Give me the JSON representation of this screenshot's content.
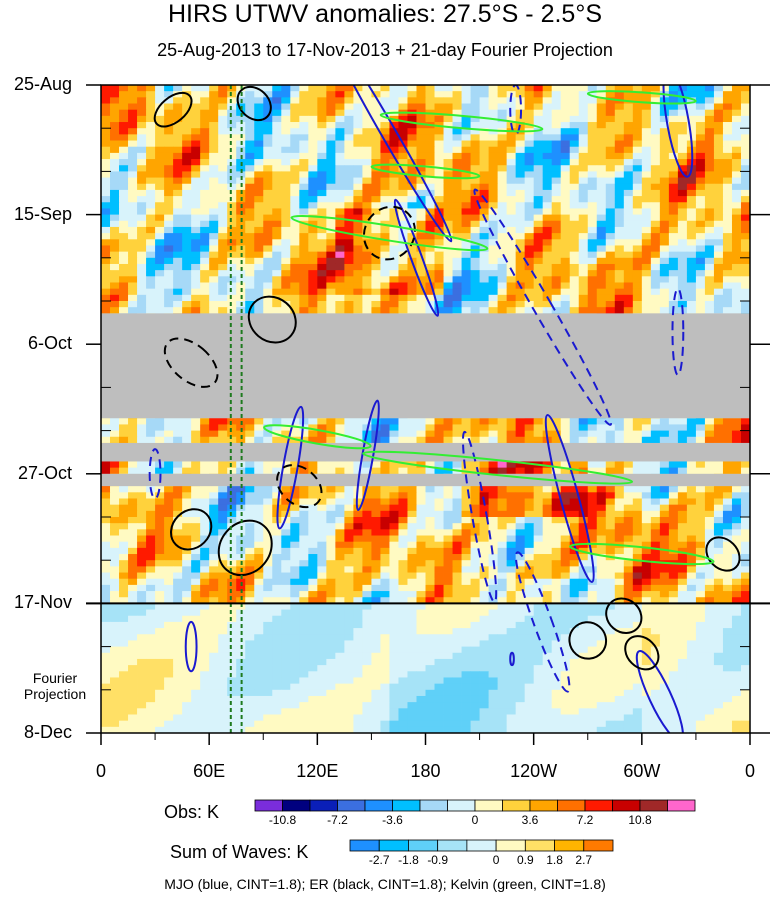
{
  "chart_data": {
    "type": "heatmap",
    "title": "HIRS UTWV anomalies: 27.5°S - 2.5°S",
    "subtitle": "25-Aug-2013 to 17-Nov-2013 + 21-day Fourier Projection",
    "xlabel": "",
    "ylabel": "",
    "x_ticks": [
      "0",
      "60E",
      "120E",
      "180",
      "120W",
      "60W",
      "0"
    ],
    "x_tick_lon": [
      0,
      60,
      120,
      180,
      240,
      300,
      360
    ],
    "xlim": [
      0,
      360
    ],
    "y_ticks": [
      "25-Aug",
      "15-Sep",
      "6-Oct",
      "27-Oct",
      "17-Nov",
      "8-Dec"
    ],
    "y_tick_day": [
      0,
      21,
      42,
      63,
      84,
      105
    ],
    "ylim_days": [
      0,
      105
    ],
    "projection_start_day": 84,
    "projection_label": [
      "Fourier",
      "Projection"
    ],
    "missing_data_bands_days": [
      [
        37,
        54
      ],
      [
        58,
        61
      ],
      [
        63,
        65
      ]
    ],
    "reference_longitudes_dotted_green": [
      72,
      78
    ],
    "obs_colorbar": {
      "label": "Obs: K",
      "tick_labels": [
        "-10.8",
        "-7.2",
        "-3.6",
        "0",
        "3.6",
        "7.2",
        "10.8"
      ],
      "levels": [
        -12.6,
        -10.8,
        -9,
        -7.2,
        -5.4,
        -3.6,
        -1.8,
        0,
        1.8,
        3.6,
        5.4,
        7.2,
        9,
        10.8,
        12.6
      ],
      "colors": [
        "#7a2ddb",
        "#00007f",
        "#0a1fb8",
        "#3b6fe0",
        "#1e90ff",
        "#00bfff",
        "#a6d9f7",
        "#d8f3fb",
        "#fffac2",
        "#ffd23c",
        "#ffa500",
        "#ff7000",
        "#ff1a00",
        "#c80000",
        "#a02828",
        "#ff66cc"
      ]
    },
    "waves_colorbar": {
      "label": "Sum of Waves: K",
      "tick_labels": [
        "-2.7",
        "-1.8",
        "-0.9",
        "0",
        "0.9",
        "1.8",
        "2.7"
      ],
      "levels": [
        -3.6,
        -2.7,
        -1.8,
        -0.9,
        0,
        0.9,
        1.8,
        2.7,
        3.6
      ],
      "colors": [
        "#1e90ff",
        "#00bfff",
        "#5fd0f8",
        "#a6e3f7",
        "#d8f3fb",
        "#fffac2",
        "#ffe066",
        "#ffb400",
        "#ff7a00"
      ]
    },
    "contours": [
      {
        "name": "MJO",
        "color": "#1a1ad0",
        "cint": 1.8
      },
      {
        "name": "ER",
        "color": "#000000",
        "cint": 1.8
      },
      {
        "name": "Kelvin",
        "color": "#33ee33",
        "cint": 1.8
      }
    ]
  },
  "footnote": "MJO (blue, CINT=1.8); ER (black, CINT=1.8); Kelvin (green, CINT=1.8)"
}
